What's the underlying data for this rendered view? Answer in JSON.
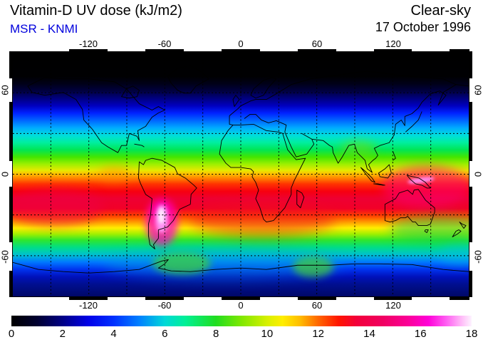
{
  "header": {
    "title": "Vitamin-D UV dose (kJ/m2)",
    "source": "MSR - KNMI",
    "source_color": "#0000dd",
    "condition": "Clear-sky",
    "date": "17 October 1996"
  },
  "map": {
    "projection_note": "global latitude-longitude map",
    "top_lon_labels": [
      "-120",
      "-60",
      "0",
      "60",
      "120"
    ],
    "bottom_lon_labels": [
      "-120",
      "-60",
      "0",
      "60",
      "120"
    ],
    "left_lat_labels": [
      "60",
      "0",
      "-60"
    ],
    "right_lat_labels": [
      "60",
      "0",
      "-60"
    ],
    "grid_lon_deg": [
      -150,
      -120,
      -90,
      -60,
      -30,
      0,
      30,
      60,
      90,
      120,
      150
    ],
    "grid_lat_deg": [
      60,
      30,
      0,
      -30,
      -60
    ],
    "zonal_stops": [
      [
        "0%",
        "#000000"
      ],
      [
        "10%",
        "#000002"
      ],
      [
        "13%",
        "#000018"
      ],
      [
        "16%",
        "#000040"
      ],
      [
        "19%",
        "#000080"
      ],
      [
        "22%",
        "#0000c0"
      ],
      [
        "25%",
        "#0022ff"
      ],
      [
        "28%",
        "#0066ff"
      ],
      [
        "31%",
        "#00aaff"
      ],
      [
        "34%",
        "#00dddd"
      ],
      [
        "37%",
        "#00eea0"
      ],
      [
        "40%",
        "#00e655"
      ],
      [
        "43%",
        "#44e600"
      ],
      [
        "46%",
        "#a0f000"
      ],
      [
        "48.5%",
        "#e8e800"
      ],
      [
        "50%",
        "#ffbb00"
      ],
      [
        "52%",
        "#ff7700"
      ],
      [
        "54%",
        "#ff3300"
      ],
      [
        "57%",
        "#f70010"
      ],
      [
        "60%",
        "#ee0033"
      ],
      [
        "64%",
        "#f20028"
      ],
      [
        "67%",
        "#ff3f00"
      ],
      [
        "70%",
        "#ffaa00"
      ],
      [
        "72%",
        "#ffee00"
      ],
      [
        "74.5%",
        "#a0f000"
      ],
      [
        "77%",
        "#2ee62e"
      ],
      [
        "80%",
        "#00dd88"
      ],
      [
        "83%",
        "#00c0d0"
      ],
      [
        "86%",
        "#0077ff"
      ],
      [
        "89%",
        "#0033ee"
      ],
      [
        "92%",
        "#0011bb"
      ],
      [
        "95%",
        "#000f90"
      ],
      [
        "100%",
        "#000868"
      ]
    ]
  },
  "colorbar": {
    "tick_labels": [
      "0",
      "2",
      "4",
      "6",
      "8",
      "10",
      "12",
      "14",
      "16",
      "18"
    ],
    "min": 0,
    "max": 18,
    "stops": [
      [
        0,
        "#000000"
      ],
      [
        1,
        "#000030"
      ],
      [
        2,
        "#000085"
      ],
      [
        3,
        "#0000e8"
      ],
      [
        4,
        "#0030ff"
      ],
      [
        5,
        "#0080ff"
      ],
      [
        6,
        "#00d8d8"
      ],
      [
        6.8,
        "#00f096"
      ],
      [
        8,
        "#20dd20"
      ],
      [
        9,
        "#80e800"
      ],
      [
        10,
        "#d8f000"
      ],
      [
        10.6,
        "#ffee00"
      ],
      [
        11.3,
        "#ffbb00"
      ],
      [
        12,
        "#ff6600"
      ],
      [
        12.8,
        "#ff1500"
      ],
      [
        13.5,
        "#f3003a"
      ],
      [
        14.5,
        "#f00060"
      ],
      [
        15.5,
        "#fb0096"
      ],
      [
        16.3,
        "#ff00d8"
      ],
      [
        17,
        "#ff5cf2"
      ],
      [
        17.6,
        "#ffbbf8"
      ],
      [
        18,
        "#fdf3ff"
      ]
    ]
  }
}
